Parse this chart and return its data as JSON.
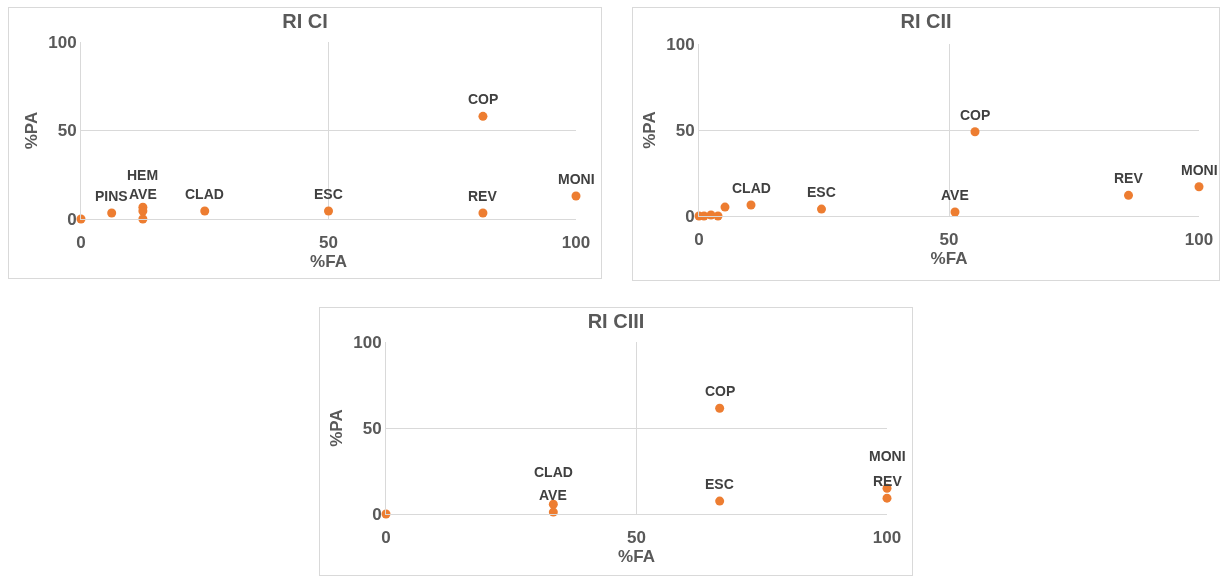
{
  "chart_data": [
    {
      "type": "scatter",
      "title": "RI CI",
      "xlabel": "%FA",
      "ylabel": "%PA",
      "color": "#ed7d31",
      "marker": "circle",
      "grid": true,
      "xlim": [
        0,
        100
      ],
      "ylim": [
        0,
        100
      ],
      "xticks": [
        0,
        50,
        100
      ],
      "yticks": [
        0,
        50,
        100
      ],
      "x": [
        0,
        6.2,
        12.5,
        12.5,
        12.5,
        25,
        50,
        81.2,
        81.2,
        100
      ],
      "values": [
        0,
        3.4,
        6.7,
        4.5,
        0,
        4.5,
        4.5,
        58,
        3.4,
        13
      ],
      "annotations": [
        {
          "text": "PINS",
          "x": 6.2,
          "y": 3.4
        },
        {
          "text": "HEM",
          "x": 12.5,
          "y": 6.7
        },
        {
          "text": "AVE",
          "x": 12.5,
          "y": 4.5
        },
        {
          "text": "CLAD",
          "x": 25,
          "y": 4.5
        },
        {
          "text": "ESC",
          "x": 50,
          "y": 4.5
        },
        {
          "text": "COP",
          "x": 81.2,
          "y": 58
        },
        {
          "text": "REV",
          "x": 81.2,
          "y": 3.4
        },
        {
          "text": "MONI",
          "x": 100,
          "y": 13
        }
      ]
    },
    {
      "type": "scatter",
      "title": "RI CII",
      "xlabel": "%FA",
      "ylabel": "%PA",
      "color": "#ed7d31",
      "marker": "circle",
      "grid": true,
      "xlim": [
        0,
        100
      ],
      "ylim": [
        0,
        100
      ],
      "xticks": [
        0,
        50,
        100
      ],
      "yticks": [
        0,
        50,
        100
      ],
      "x": [
        0,
        1,
        2.4,
        3.8,
        5.2,
        10.4,
        24.5,
        51.2,
        55.2,
        85.9,
        100
      ],
      "values": [
        0,
        0,
        0.6,
        0,
        5.2,
        6.4,
        4,
        2.3,
        49,
        12,
        17
      ],
      "annotations": [
        {
          "text": "CLAD",
          "x": 10.4,
          "y": 6.4
        },
        {
          "text": "ESC",
          "x": 24.5,
          "y": 4
        },
        {
          "text": "AVE",
          "x": 51.2,
          "y": 2.3
        },
        {
          "text": "COP",
          "x": 55.2,
          "y": 49
        },
        {
          "text": "REV",
          "x": 85.9,
          "y": 12
        },
        {
          "text": "MONI",
          "x": 100,
          "y": 17
        }
      ]
    },
    {
      "type": "scatter",
      "title": "RI CIII",
      "xlabel": "%FA",
      "ylabel": "%PA",
      "color": "#ed7d31",
      "marker": "circle",
      "grid": true,
      "xlim": [
        0,
        100
      ],
      "ylim": [
        0,
        100
      ],
      "xticks": [
        0,
        50,
        100
      ],
      "yticks": [
        0,
        50,
        100
      ],
      "x": [
        0,
        33.4,
        33.4,
        66.6,
        66.6,
        100,
        100
      ],
      "values": [
        0,
        5.7,
        1.1,
        61.5,
        7.5,
        15,
        9.2
      ],
      "annotations": [
        {
          "text": "CLAD",
          "x": 33.4,
          "y": 5.7
        },
        {
          "text": "AVE",
          "x": 33.4,
          "y": 1.1
        },
        {
          "text": "COP",
          "x": 66.6,
          "y": 61.5
        },
        {
          "text": "ESC",
          "x": 66.6,
          "y": 7.5
        },
        {
          "text": "MONI",
          "x": 100,
          "y": 15
        },
        {
          "text": "REV",
          "x": 100,
          "y": 9.2
        }
      ]
    }
  ]
}
